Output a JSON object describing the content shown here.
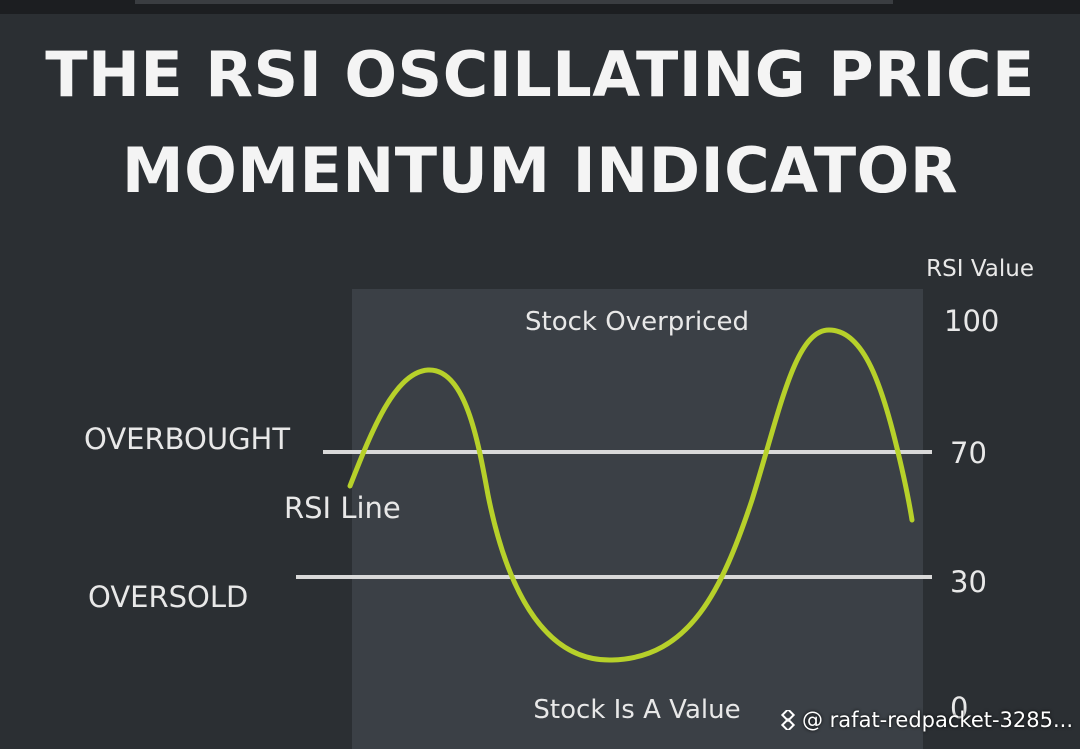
{
  "title": {
    "line1": "THE RSI OSCILLATING PRICE",
    "line2": "MOMENTUM INDICATOR"
  },
  "axis_title": "RSI Value",
  "zones": {
    "top_label": "Stock Overpriced",
    "bottom_label": "Stock Is A Value"
  },
  "levels": [
    {
      "label": "OVERBOUGHT",
      "value": "70"
    },
    {
      "label": "OVERSOLD",
      "value": "30"
    }
  ],
  "ticks": [
    "100",
    "70",
    "30",
    "0"
  ],
  "curve_label": "RSI Line",
  "watermark": "@ rafat-redpacket-3285...",
  "colors": {
    "background": "#2b2f33",
    "panel": "#3b4046",
    "curve": "#b7d12a",
    "lines": "#d9d9d9",
    "text": "#e8e8e8"
  },
  "icons": {
    "watermark": "diamond-logo-icon"
  }
}
